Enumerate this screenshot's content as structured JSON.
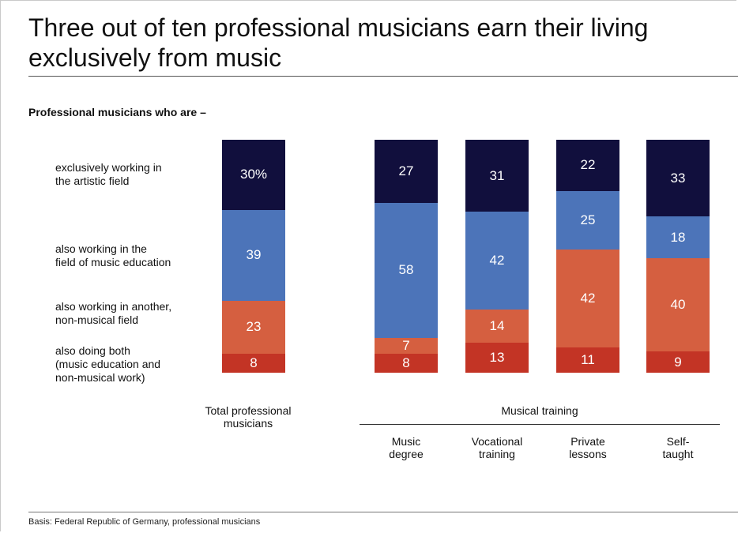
{
  "title": "Three out of ten professional musicians earn their living exclusively from music",
  "subtitle": "Professional musicians who are –",
  "footer": "Basis: Federal Republic of Germany, professional musicians",
  "colors": {
    "artistic": "#110f3d",
    "education": "#4c74b9",
    "non_musical": "#d55f40",
    "both": "#c33425"
  },
  "chart_data": {
    "type": "bar",
    "stacked": true,
    "categories": [
      "Total professional musicians",
      "Music degree",
      "Vocational training",
      "Private lessons",
      "Self-taught"
    ],
    "group_label": "Musical training",
    "series": [
      {
        "name": "exclusively working in the artistic field",
        "values": [
          30,
          27,
          31,
          22,
          33
        ],
        "labels": [
          "30%",
          "27",
          "31",
          "22",
          "33"
        ]
      },
      {
        "name": "also working in the field of music education",
        "values": [
          39,
          58,
          42,
          25,
          18
        ],
        "labels": [
          "39",
          "58",
          "42",
          "25",
          "18"
        ]
      },
      {
        "name": "also working in another, non-musical field",
        "values": [
          23,
          7,
          14,
          42,
          40
        ],
        "labels": [
          "23",
          "7",
          "14",
          "42",
          "40"
        ]
      },
      {
        "name": "also doing both (music education and non-musical work)",
        "values": [
          8,
          8,
          13,
          11,
          9
        ],
        "labels": [
          "8",
          "8",
          "13",
          "11",
          "9"
        ]
      }
    ],
    "ylim": [
      0,
      100
    ]
  },
  "legend_labels": [
    [
      "exclusively working in",
      "the artistic field"
    ],
    [
      "also working in the",
      "field of music education"
    ],
    [
      "also working in another,",
      "non-musical field"
    ],
    [
      "also doing both",
      "(music education and",
      "non-musical work)"
    ]
  ],
  "x_labels": [
    [
      "Total professional",
      "musicians"
    ],
    [
      "Music",
      "degree"
    ],
    [
      "Vocational",
      "training"
    ],
    [
      "Private",
      "lessons"
    ],
    [
      "Self-",
      "taught"
    ]
  ]
}
